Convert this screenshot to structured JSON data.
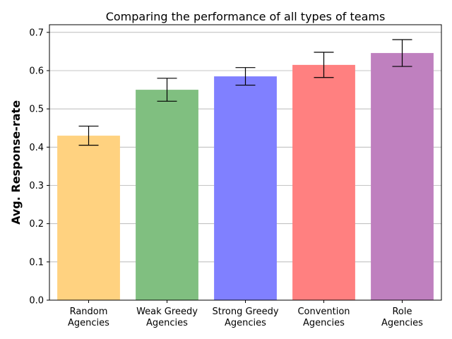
{
  "chart_data": {
    "type": "bar",
    "title": "Comparing the performance of all types of teams",
    "xlabel": "",
    "ylabel": "Avg. Response-rate",
    "ylim": [
      0,
      0.72
    ],
    "yticks": [
      "0.0",
      "0.1",
      "0.2",
      "0.3",
      "0.4",
      "0.5",
      "0.6",
      "0.7"
    ],
    "grid": "horizontal",
    "categories": [
      [
        "Random",
        "Agencies"
      ],
      [
        "Weak Greedy",
        "Agencies"
      ],
      [
        "Strong Greedy",
        "Agencies"
      ],
      [
        "Convention",
        "Agencies"
      ],
      [
        "Role",
        "Agencies"
      ]
    ],
    "values": [
      0.43,
      0.55,
      0.585,
      0.615,
      0.646
    ],
    "errors": [
      0.025,
      0.03,
      0.023,
      0.033,
      0.035
    ],
    "colors": [
      "#ffd280",
      "#80bf80",
      "#8080ff",
      "#ff8080",
      "#bf80bf"
    ]
  }
}
